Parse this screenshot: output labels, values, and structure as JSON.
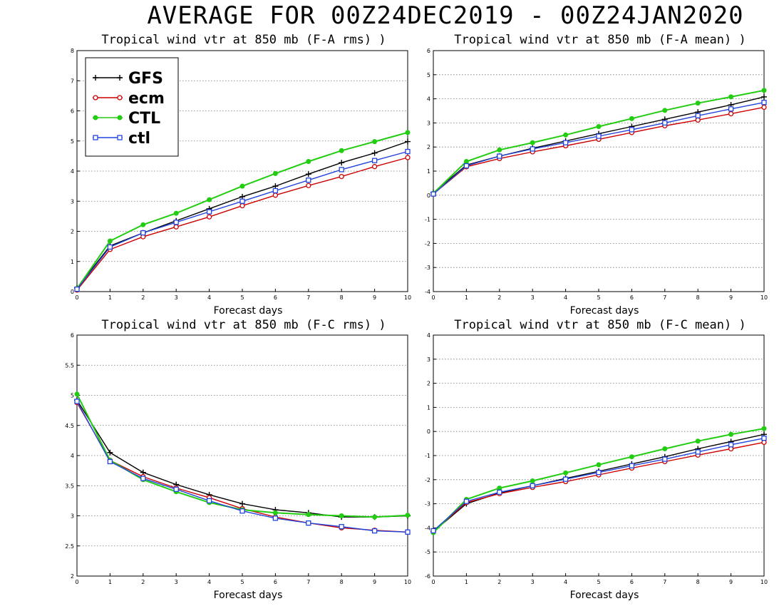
{
  "title": "AVERAGE FOR 00Z24DEC2019 - 00Z24JAN2020",
  "colors": {
    "GFS": "#000000",
    "ecm": "#cc0000",
    "CTL": "#22cc11",
    "ctl": "#2244dd"
  },
  "legend": [
    "GFS",
    "ecm",
    "CTL",
    "ctl"
  ],
  "chart_data": [
    {
      "type": "line",
      "title": "Tropical wind vtr at 850 mb (F-A rms) )",
      "xlabel": "Forecast days",
      "ylabel": "",
      "ylim": [
        0,
        8
      ],
      "yticks": [
        0,
        1,
        2,
        3,
        4,
        5,
        6,
        7,
        8
      ],
      "x": [
        0,
        1,
        2,
        3,
        4,
        5,
        6,
        7,
        8,
        9,
        10
      ],
      "grid": true,
      "legend_position": "top-left",
      "series": [
        {
          "name": "GFS",
          "marker": "plus",
          "values": [
            0.12,
            1.52,
            1.95,
            2.35,
            2.75,
            3.15,
            3.5,
            3.9,
            4.28,
            4.6,
            4.98
          ]
        },
        {
          "name": "ecm",
          "marker": "open-circle",
          "values": [
            0.05,
            1.4,
            1.82,
            2.15,
            2.48,
            2.85,
            3.2,
            3.52,
            3.82,
            4.15,
            4.45
          ]
        },
        {
          "name": "CTL",
          "marker": "filled-circle",
          "values": [
            0.1,
            1.68,
            2.22,
            2.6,
            3.05,
            3.5,
            3.92,
            4.32,
            4.68,
            4.98,
            5.28
          ]
        },
        {
          "name": "ctl",
          "marker": "open-square",
          "values": [
            0.08,
            1.48,
            1.95,
            2.3,
            2.65,
            3.0,
            3.35,
            3.7,
            4.05,
            4.35,
            4.65
          ]
        }
      ]
    },
    {
      "type": "line",
      "title": "Tropical wind vtr at 850 mb (F-A mean) )",
      "xlabel": "Forecast days",
      "ylabel": "",
      "ylim": [
        -4,
        6
      ],
      "yticks": [
        -4,
        -3,
        -2,
        -1,
        0,
        1,
        2,
        3,
        4,
        5,
        6
      ],
      "x": [
        0,
        1,
        2,
        3,
        4,
        5,
        6,
        7,
        8,
        9,
        10
      ],
      "grid": true,
      "series": [
        {
          "name": "GFS",
          "marker": "plus",
          "values": [
            0.1,
            1.25,
            1.62,
            1.95,
            2.25,
            2.55,
            2.85,
            3.15,
            3.45,
            3.75,
            4.08
          ]
        },
        {
          "name": "ecm",
          "marker": "open-circle",
          "values": [
            0.05,
            1.18,
            1.52,
            1.8,
            2.05,
            2.32,
            2.6,
            2.88,
            3.12,
            3.38,
            3.65
          ]
        },
        {
          "name": "CTL",
          "marker": "filled-circle",
          "values": [
            0.08,
            1.4,
            1.88,
            2.18,
            2.5,
            2.85,
            3.18,
            3.52,
            3.82,
            4.08,
            4.35
          ]
        },
        {
          "name": "ctl",
          "marker": "open-square",
          "values": [
            0.05,
            1.22,
            1.62,
            1.92,
            2.18,
            2.45,
            2.72,
            3.0,
            3.3,
            3.58,
            3.85
          ]
        }
      ]
    },
    {
      "type": "line",
      "title": "Tropical wind vtr at 850 mb (F-C rms) )",
      "xlabel": "Forecast days",
      "ylabel": "",
      "ylim": [
        2,
        6
      ],
      "yticks": [
        2,
        2.5,
        3,
        3.5,
        4,
        4.5,
        5,
        5.5,
        6
      ],
      "x": [
        0,
        1,
        2,
        3,
        4,
        5,
        6,
        7,
        8,
        9,
        10
      ],
      "grid": true,
      "series": [
        {
          "name": "GFS",
          "marker": "plus",
          "values": [
            4.92,
            4.05,
            3.72,
            3.52,
            3.35,
            3.2,
            3.1,
            3.05,
            2.98,
            2.98,
            3.0
          ]
        },
        {
          "name": "ecm",
          "marker": "open-circle",
          "values": [
            4.88,
            3.92,
            3.65,
            3.46,
            3.3,
            3.12,
            2.98,
            2.88,
            2.8,
            2.76,
            2.73
          ]
        },
        {
          "name": "CTL",
          "marker": "filled-circle",
          "values": [
            5.02,
            3.92,
            3.6,
            3.4,
            3.22,
            3.1,
            3.05,
            3.02,
            3.0,
            2.98,
            3.01
          ]
        },
        {
          "name": "ctl",
          "marker": "open-square",
          "values": [
            4.9,
            3.9,
            3.62,
            3.44,
            3.25,
            3.08,
            2.96,
            2.88,
            2.82,
            2.75,
            2.73
          ]
        }
      ]
    },
    {
      "type": "line",
      "title": "Tropical wind vtr at 850 mb (F-C mean) )",
      "xlabel": "Forecast days",
      "ylabel": "",
      "ylim": [
        -6,
        4
      ],
      "yticks": [
        -6,
        -5,
        -4,
        -3,
        -2,
        -1,
        0,
        1,
        2,
        3,
        4
      ],
      "x": [
        0,
        1,
        2,
        3,
        4,
        5,
        6,
        7,
        8,
        9,
        10
      ],
      "grid": true,
      "series": [
        {
          "name": "GFS",
          "marker": "plus",
          "values": [
            -4.15,
            -3.0,
            -2.55,
            -2.25,
            -1.95,
            -1.65,
            -1.35,
            -1.05,
            -0.72,
            -0.42,
            -0.12
          ]
        },
        {
          "name": "ecm",
          "marker": "open-circle",
          "values": [
            -4.15,
            -2.95,
            -2.58,
            -2.32,
            -2.08,
            -1.8,
            -1.52,
            -1.25,
            -0.98,
            -0.72,
            -0.45
          ]
        },
        {
          "name": "CTL",
          "marker": "filled-circle",
          "values": [
            -4.2,
            -2.82,
            -2.35,
            -2.05,
            -1.72,
            -1.38,
            -1.05,
            -0.72,
            -0.4,
            -0.12,
            0.12
          ]
        },
        {
          "name": "ctl",
          "marker": "open-square",
          "values": [
            -4.12,
            -2.9,
            -2.52,
            -2.25,
            -1.98,
            -1.7,
            -1.42,
            -1.15,
            -0.85,
            -0.55,
            -0.28
          ]
        }
      ]
    }
  ]
}
